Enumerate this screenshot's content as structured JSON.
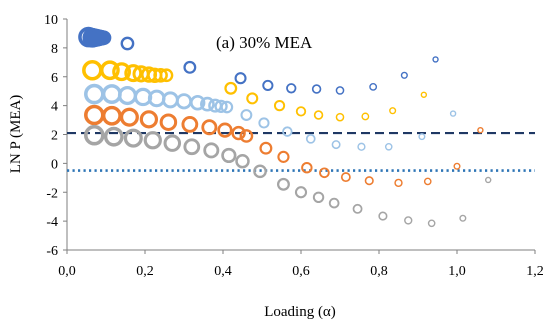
{
  "chart_data": {
    "type": "scatter",
    "annotation": "(a) 30% MEA",
    "xlabel": "Loading (α)",
    "ylabel": "LN P (MEA)",
    "xlim": [
      0,
      1.2
    ],
    "ylim": [
      -6,
      10
    ],
    "x_ticks": [
      "0,0",
      "0,2",
      "0,4",
      "0,6",
      "0,8",
      "1,0",
      "1,2"
    ],
    "y_ticks": [
      "-6",
      "-4",
      "-2",
      "0",
      "2",
      "4",
      "6",
      "8",
      "10"
    ],
    "grid": false,
    "legend": "none",
    "reference_lines": [
      {
        "y": 2.1,
        "style": "dashed",
        "color": "#1f3864"
      },
      {
        "y": -0.5,
        "style": "dotted",
        "color": "#2e75b6"
      }
    ],
    "series": [
      {
        "color": "#4472c4",
        "points": [
          [
            0.055,
            8.75
          ],
          [
            0.065,
            8.7
          ],
          [
            0.07,
            8.7
          ],
          [
            0.075,
            8.7
          ],
          [
            0.08,
            8.7
          ],
          [
            0.085,
            8.7
          ],
          [
            0.09,
            8.7
          ],
          [
            0.095,
            8.7
          ],
          [
            0.155,
            8.3
          ],
          [
            0.315,
            6.65
          ],
          [
            0.445,
            5.9
          ],
          [
            0.515,
            5.4
          ],
          [
            0.575,
            5.2
          ],
          [
            0.64,
            5.15
          ],
          [
            0.7,
            5.05
          ],
          [
            0.785,
            5.3
          ],
          [
            0.865,
            6.1
          ],
          [
            0.945,
            7.2
          ]
        ]
      },
      {
        "color": "#ffc000",
        "points": [
          [
            0.065,
            6.45
          ],
          [
            0.11,
            6.45
          ],
          [
            0.14,
            6.35
          ],
          [
            0.17,
            6.25
          ],
          [
            0.19,
            6.2
          ],
          [
            0.21,
            6.15
          ],
          [
            0.225,
            6.1
          ],
          [
            0.24,
            6.1
          ],
          [
            0.255,
            6.1
          ],
          [
            0.42,
            5.2
          ],
          [
            0.475,
            4.5
          ],
          [
            0.545,
            4.0
          ],
          [
            0.6,
            3.6
          ],
          [
            0.645,
            3.35
          ],
          [
            0.7,
            3.2
          ],
          [
            0.765,
            3.25
          ],
          [
            0.835,
            3.65
          ],
          [
            0.915,
            4.75
          ]
        ]
      },
      {
        "color": "#9dc3e6",
        "points": [
          [
            0.07,
            4.8
          ],
          [
            0.115,
            4.8
          ],
          [
            0.155,
            4.7
          ],
          [
            0.195,
            4.6
          ],
          [
            0.23,
            4.5
          ],
          [
            0.265,
            4.4
          ],
          [
            0.3,
            4.3
          ],
          [
            0.335,
            4.2
          ],
          [
            0.36,
            4.1
          ],
          [
            0.38,
            4.0
          ],
          [
            0.395,
            3.95
          ],
          [
            0.41,
            3.9
          ],
          [
            0.46,
            3.35
          ],
          [
            0.505,
            2.8
          ],
          [
            0.565,
            2.2
          ],
          [
            0.625,
            1.7
          ],
          [
            0.69,
            1.3
          ],
          [
            0.755,
            1.15
          ],
          [
            0.825,
            1.15
          ],
          [
            0.91,
            1.85
          ],
          [
            0.99,
            3.45
          ]
        ]
      },
      {
        "color": "#ed7d31",
        "points": [
          [
            0.07,
            3.35
          ],
          [
            0.115,
            3.3
          ],
          [
            0.16,
            3.2
          ],
          [
            0.21,
            3.05
          ],
          [
            0.26,
            2.85
          ],
          [
            0.315,
            2.7
          ],
          [
            0.365,
            2.5
          ],
          [
            0.405,
            2.3
          ],
          [
            0.44,
            2.1
          ],
          [
            0.46,
            1.9
          ],
          [
            0.51,
            1.05
          ],
          [
            0.555,
            0.45
          ],
          [
            0.615,
            -0.3
          ],
          [
            0.66,
            -0.65
          ],
          [
            0.715,
            -0.95
          ],
          [
            0.775,
            -1.2
          ],
          [
            0.85,
            -1.35
          ],
          [
            0.925,
            -1.25
          ],
          [
            1.0,
            -0.2
          ],
          [
            1.06,
            2.3
          ]
        ]
      },
      {
        "color": "#a5a5a5",
        "points": [
          [
            0.07,
            1.95
          ],
          [
            0.12,
            1.85
          ],
          [
            0.17,
            1.75
          ],
          [
            0.22,
            1.6
          ],
          [
            0.27,
            1.4
          ],
          [
            0.32,
            1.15
          ],
          [
            0.37,
            0.9
          ],
          [
            0.415,
            0.55
          ],
          [
            0.45,
            0.15
          ],
          [
            0.495,
            -0.55
          ],
          [
            0.555,
            -1.45
          ],
          [
            0.6,
            -2.0
          ],
          [
            0.645,
            -2.35
          ],
          [
            0.685,
            -2.75
          ],
          [
            0.745,
            -3.15
          ],
          [
            0.81,
            -3.65
          ],
          [
            0.875,
            -3.95
          ],
          [
            0.935,
            -4.15
          ],
          [
            1.015,
            -3.8
          ],
          [
            1.08,
            -1.15
          ]
        ]
      }
    ]
  }
}
